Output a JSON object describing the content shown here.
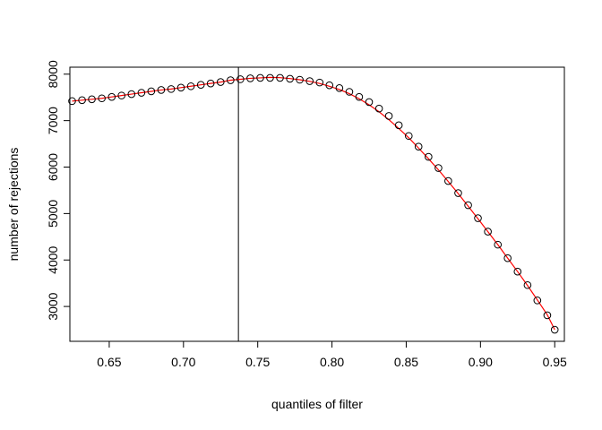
{
  "chart_data": {
    "type": "scatter",
    "xlabel": "quantiles of filter",
    "ylabel": "number of rejections",
    "xlim": [
      0.6235,
      0.9565
    ],
    "ylim": [
      2250,
      8150
    ],
    "x_ticks": [
      0.65,
      0.7,
      0.75,
      0.8,
      0.85,
      0.9,
      0.95
    ],
    "x_tick_labels": [
      "0.65",
      "0.70",
      "0.75",
      "0.80",
      "0.85",
      "0.90",
      "0.95"
    ],
    "y_ticks": [
      3000,
      4000,
      5000,
      6000,
      7000,
      8000
    ],
    "y_tick_labels": [
      "3000",
      "4000",
      "5000",
      "6000",
      "7000",
      "8000"
    ],
    "grid": false,
    "legend": "none",
    "vline_x": 0.737,
    "point_color": "#000000",
    "fit_line_color": "#ff0000",
    "vline_color": "#000000",
    "series": [
      {
        "marker": "open-circle",
        "x": [
          0.625,
          0.6317,
          0.6383,
          0.645,
          0.6517,
          0.6583,
          0.665,
          0.6717,
          0.6783,
          0.685,
          0.6917,
          0.6983,
          0.705,
          0.7117,
          0.7183,
          0.725,
          0.7317,
          0.7383,
          0.745,
          0.7517,
          0.7583,
          0.765,
          0.7717,
          0.7783,
          0.785,
          0.7917,
          0.7983,
          0.805,
          0.8117,
          0.8183,
          0.825,
          0.8317,
          0.8383,
          0.845,
          0.8517,
          0.8583,
          0.865,
          0.8717,
          0.8783,
          0.885,
          0.8917,
          0.8983,
          0.905,
          0.9117,
          0.9183,
          0.925,
          0.9317,
          0.9383,
          0.945,
          0.95
        ],
        "y": [
          7420,
          7440,
          7460,
          7480,
          7510,
          7540,
          7570,
          7600,
          7630,
          7660,
          7680,
          7710,
          7740,
          7770,
          7800,
          7830,
          7870,
          7890,
          7910,
          7920,
          7920,
          7920,
          7900,
          7880,
          7850,
          7820,
          7760,
          7700,
          7620,
          7510,
          7400,
          7260,
          7100,
          6900,
          6670,
          6440,
          6220,
          5980,
          5700,
          5440,
          5180,
          4900,
          4610,
          4330,
          4040,
          3750,
          3460,
          3130,
          2810,
          2500
        ]
      }
    ],
    "fit_line": {
      "x": [
        0.625,
        0.6317,
        0.6383,
        0.645,
        0.6517,
        0.6583,
        0.665,
        0.6717,
        0.6783,
        0.685,
        0.6917,
        0.6983,
        0.705,
        0.7117,
        0.7183,
        0.725,
        0.7317,
        0.7383,
        0.745,
        0.7517,
        0.7583,
        0.765,
        0.7717,
        0.7783,
        0.785,
        0.7917,
        0.7983,
        0.805,
        0.8117,
        0.8183,
        0.825,
        0.8317,
        0.8383,
        0.845,
        0.8517,
        0.8583,
        0.865,
        0.8717,
        0.8783,
        0.885,
        0.8917,
        0.8983,
        0.905,
        0.9117,
        0.9183,
        0.925,
        0.9317,
        0.9383,
        0.945,
        0.95
      ],
      "y": [
        7420,
        7440,
        7460,
        7480,
        7510,
        7540,
        7570,
        7600,
        7630,
        7660,
        7680,
        7710,
        7740,
        7770,
        7800,
        7830,
        7870,
        7890,
        7910,
        7920,
        7930,
        7925,
        7905,
        7880,
        7845,
        7800,
        7740,
        7670,
        7580,
        7470,
        7340,
        7190,
        7020,
        6830,
        6630,
        6410,
        6180,
        5940,
        5690,
        5430,
        5160,
        4890,
        4610,
        4330,
        4040,
        3750,
        3450,
        3140,
        2820,
        2500
      ]
    }
  }
}
